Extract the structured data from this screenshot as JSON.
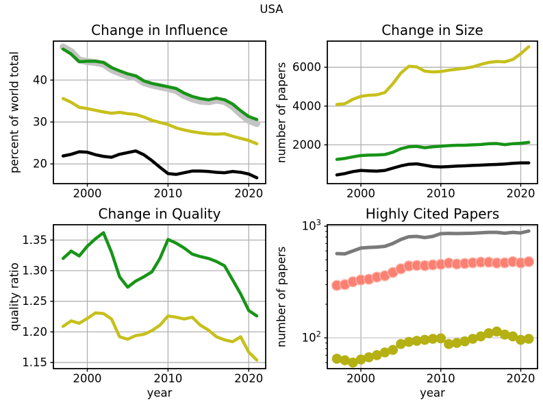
{
  "figure": {
    "title": "USA"
  },
  "chart_data": [
    {
      "type": "line",
      "title": "Change in Influence",
      "ylabel": "percent of world total",
      "xlabel": "",
      "x": [
        1997,
        1998,
        1999,
        2000,
        2001,
        2002,
        2003,
        2004,
        2005,
        2006,
        2007,
        2008,
        2009,
        2010,
        2011,
        2012,
        2013,
        2014,
        2015,
        2016,
        2017,
        2018,
        2019,
        2020,
        2021
      ],
      "xlim": [
        1995.8,
        2022.1
      ],
      "ylim": [
        15.3,
        49.3
      ],
      "yscale": "linear",
      "xticks": [
        2000,
        2010,
        2020
      ],
      "xticklabels": [
        "2000",
        "2010",
        "2020"
      ],
      "yticks": [
        20,
        30,
        40
      ],
      "yticklabels": [
        "20",
        "30",
        "40"
      ],
      "grid": true,
      "grid_color": "#b0b0b0",
      "legend": "none",
      "series": [
        {
          "name": "uncertainty-band",
          "color": "#c3c3c3",
          "width": 10,
          "values": [
            47.9,
            46.8,
            44.8,
            44.4,
            44.2,
            43.8,
            42.5,
            41.7,
            41.0,
            40.6,
            39.4,
            38.8,
            38.4,
            38.0,
            37.5,
            36.3,
            35.5,
            35.0,
            34.8,
            35.2,
            34.9,
            33.7,
            31.9,
            30.4,
            29.6
          ]
        },
        {
          "name": "green-series",
          "color": "#179417",
          "width": 4.5,
          "values": [
            47.4,
            46.2,
            44.4,
            44.5,
            44.5,
            44.2,
            43.0,
            42.2,
            41.5,
            41.0,
            39.8,
            39.2,
            38.8,
            38.4,
            38.0,
            36.9,
            36.1,
            35.6,
            35.3,
            35.7,
            35.3,
            34.3,
            32.7,
            31.3,
            30.6
          ]
        },
        {
          "name": "yellow-series",
          "color": "#c6c01c",
          "width": 4.5,
          "values": [
            35.6,
            34.7,
            33.5,
            33.2,
            32.8,
            32.4,
            32.1,
            32.3,
            32.0,
            31.8,
            31.2,
            30.4,
            29.9,
            29.4,
            28.6,
            28.1,
            27.7,
            27.4,
            27.2,
            27.1,
            27.2,
            26.6,
            26.1,
            25.6,
            24.8
          ]
        },
        {
          "name": "black-series",
          "color": "#000000",
          "width": 4.5,
          "values": [
            21.9,
            22.3,
            22.9,
            22.8,
            22.2,
            21.8,
            21.6,
            22.3,
            22.7,
            23.1,
            22.2,
            20.8,
            19.2,
            17.7,
            17.5,
            17.9,
            18.3,
            18.3,
            18.2,
            18.0,
            17.9,
            18.2,
            18.0,
            17.6,
            16.7
          ]
        }
      ]
    },
    {
      "type": "line",
      "title": "Change in Size",
      "ylabel": "number of papers",
      "xlabel": "",
      "x": [
        1997,
        1998,
        1999,
        2000,
        2001,
        2002,
        2003,
        2004,
        2005,
        2006,
        2007,
        2008,
        2009,
        2010,
        2011,
        2012,
        2013,
        2014,
        2015,
        2016,
        2017,
        2018,
        2019,
        2020,
        2021
      ],
      "xlim": [
        1995.8,
        2022.1
      ],
      "ylim": [
        0,
        7350
      ],
      "yscale": "linear",
      "xticks": [
        2000,
        2010,
        2020
      ],
      "xticklabels": [
        "2000",
        "2010",
        "2020"
      ],
      "yticks": [
        2000,
        4000,
        6000
      ],
      "yticklabels": [
        "2000",
        "4000",
        "6000"
      ],
      "grid": true,
      "grid_color": "#b0b0b0",
      "legend": "none",
      "series": [
        {
          "name": "yellow-series",
          "color": "#c6c01c",
          "width": 4.5,
          "values": [
            4080,
            4120,
            4350,
            4500,
            4560,
            4580,
            4700,
            5150,
            5700,
            6050,
            6020,
            5800,
            5760,
            5780,
            5850,
            5900,
            5950,
            6020,
            6150,
            6250,
            6300,
            6280,
            6400,
            6700,
            7060
          ]
        },
        {
          "name": "green-series",
          "color": "#179417",
          "width": 4.5,
          "values": [
            1250,
            1300,
            1380,
            1450,
            1470,
            1480,
            1500,
            1620,
            1800,
            1900,
            1920,
            1850,
            1900,
            1930,
            1960,
            1980,
            1980,
            2000,
            2020,
            2060,
            2070,
            2010,
            2060,
            2080,
            2130
          ]
        },
        {
          "name": "black-series",
          "color": "#000000",
          "width": 4.5,
          "values": [
            450,
            520,
            620,
            680,
            660,
            645,
            680,
            800,
            915,
            1000,
            1020,
            950,
            880,
            860,
            880,
            905,
            920,
            940,
            955,
            975,
            990,
            1010,
            1045,
            1070,
            1070
          ]
        }
      ]
    },
    {
      "type": "line",
      "title": "Change in Quality",
      "ylabel": "quality ratio",
      "xlabel": "year",
      "x": [
        1997,
        1998,
        1999,
        2000,
        2001,
        2002,
        2003,
        2004,
        2005,
        2006,
        2007,
        2008,
        2009,
        2010,
        2011,
        2012,
        2013,
        2014,
        2015,
        2016,
        2017,
        2018,
        2019,
        2020,
        2021
      ],
      "xlim": [
        1995.8,
        2022.1
      ],
      "ylim": [
        1.14,
        1.375
      ],
      "yscale": "linear",
      "xticks": [
        2000,
        2010,
        2020
      ],
      "xticklabels": [
        "2000",
        "2010",
        "2020"
      ],
      "yticks": [
        1.15,
        1.2,
        1.25,
        1.3,
        1.35
      ],
      "yticklabels": [
        "1.15",
        "1.20",
        "1.25",
        "1.30",
        "1.35"
      ],
      "grid": true,
      "grid_color": "#b0b0b0",
      "legend": "none",
      "series": [
        {
          "name": "green-series",
          "color": "#179417",
          "width": 4.5,
          "values": [
            1.32,
            1.332,
            1.324,
            1.34,
            1.352,
            1.362,
            1.33,
            1.29,
            1.273,
            1.283,
            1.29,
            1.298,
            1.32,
            1.351,
            1.345,
            1.337,
            1.327,
            1.323,
            1.32,
            1.315,
            1.308,
            1.285,
            1.262,
            1.235,
            1.226
          ]
        },
        {
          "name": "yellow-series",
          "color": "#c6c01c",
          "width": 4.5,
          "values": [
            1.209,
            1.218,
            1.214,
            1.222,
            1.231,
            1.23,
            1.221,
            1.192,
            1.188,
            1.194,
            1.196,
            1.202,
            1.211,
            1.226,
            1.224,
            1.221,
            1.224,
            1.211,
            1.203,
            1.192,
            1.187,
            1.184,
            1.192,
            1.167,
            1.154
          ]
        }
      ]
    },
    {
      "type": "scatter",
      "title": "Highly Cited Papers",
      "ylabel": "number of papers",
      "xlabel": "year",
      "x": [
        1997,
        1998,
        1999,
        2000,
        2001,
        2002,
        2003,
        2004,
        2005,
        2006,
        2007,
        2008,
        2009,
        2010,
        2011,
        2012,
        2013,
        2014,
        2015,
        2016,
        2017,
        2018,
        2019,
        2020,
        2021
      ],
      "xlim": [
        1995.8,
        2022.1
      ],
      "ylim": [
        53,
        1030
      ],
      "yscale": "log",
      "xticks": [
        2000,
        2010,
        2020
      ],
      "xticklabels": [
        "2000",
        "2010",
        "2020"
      ],
      "yticks": [
        100,
        1000
      ],
      "yticklabels": [
        "10^2",
        "10^3"
      ],
      "minor_yticks": [
        60,
        70,
        80,
        90,
        200,
        300,
        400,
        500,
        600,
        700,
        800,
        900
      ],
      "grid": true,
      "grid_color": "#b0b0b0",
      "grid_color_h": "#cccccc",
      "legend": "none",
      "series": [
        {
          "name": "gray-series",
          "color": "#7a7a7a",
          "width": 5,
          "values": [
            568,
            565,
            600,
            637,
            645,
            650,
            660,
            700,
            760,
            805,
            810,
            790,
            810,
            857,
            862,
            858,
            862,
            865,
            872,
            880,
            880,
            865,
            880,
            870,
            905
          ]
        },
        {
          "name": "salmon-dot-series",
          "color": "#fa8072",
          "edge": "#fdb3aa",
          "marker": true,
          "size": 7.3,
          "values": [
            295,
            300,
            318,
            330,
            335,
            350,
            360,
            385,
            415,
            440,
            445,
            443,
            450,
            455,
            467,
            458,
            463,
            470,
            476,
            476,
            468,
            470,
            481,
            469,
            481
          ]
        },
        {
          "name": "olive-dot-series",
          "color": "#b5b013",
          "edge": "none",
          "marker": true,
          "size": 7.3,
          "values": [
            65,
            63,
            60,
            64,
            67,
            70,
            74,
            78,
            88,
            92,
            94,
            96,
            98,
            99,
            88,
            90,
            93,
            98,
            103,
            110,
            114,
            107,
            103,
            96,
            98
          ]
        }
      ]
    }
  ]
}
